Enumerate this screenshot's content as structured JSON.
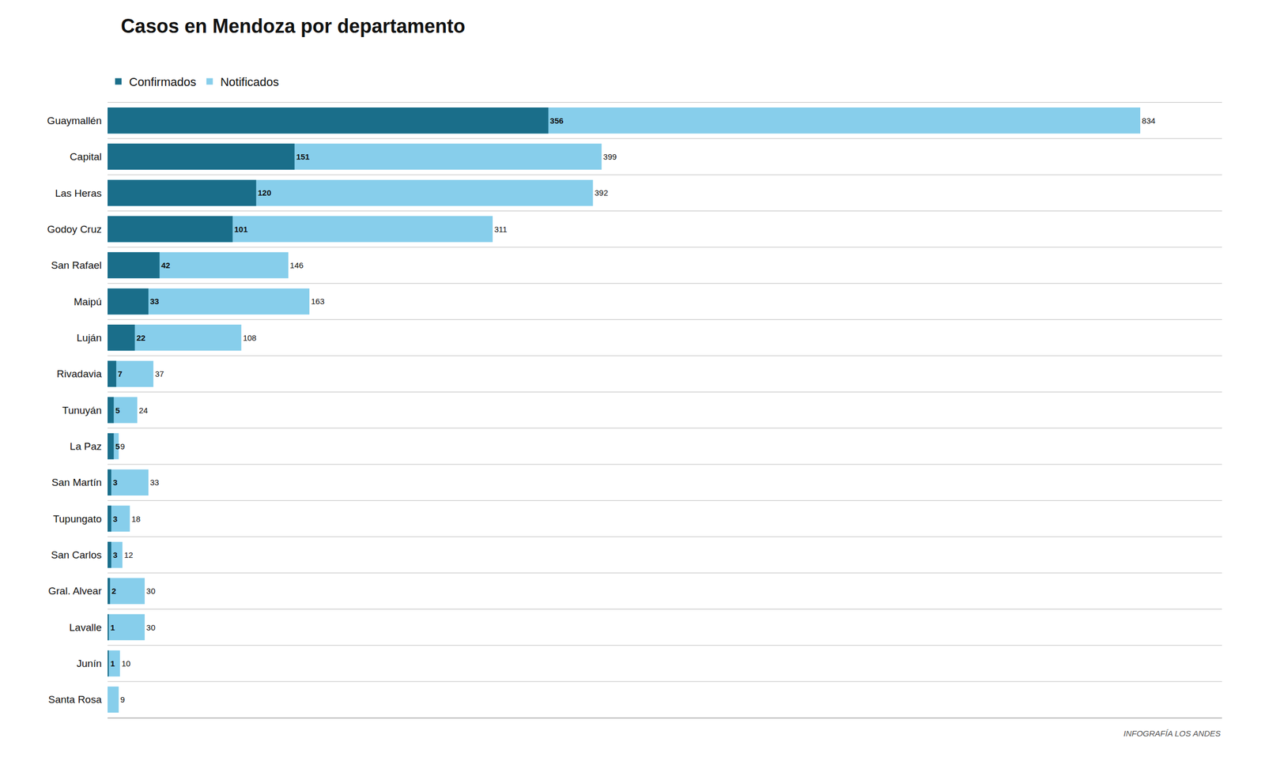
{
  "chart_data": {
    "type": "bar",
    "orientation": "horizontal",
    "title": "Casos en Mendoza por departamento",
    "categories": [
      "Guaymallén",
      "Capital",
      "Las Heras",
      "Godoy Cruz",
      "San Rafael",
      "Maipú",
      "Luján",
      "Rivadavia",
      "Tunuyán",
      "La Paz",
      "San Martín",
      "Tupungato",
      "San Carlos",
      "Gral. Alvear",
      "Lavalle",
      "Junín",
      "Santa Rosa"
    ],
    "series": [
      {
        "name": "Confirmados",
        "color": "#1a6e8a",
        "values": [
          356,
          151,
          120,
          101,
          42,
          33,
          22,
          7,
          5,
          5,
          3,
          3,
          3,
          2,
          1,
          1,
          0
        ]
      },
      {
        "name": "Notificados",
        "color": "#87ceeb",
        "values": [
          834,
          399,
          392,
          311,
          146,
          163,
          108,
          37,
          24,
          9,
          33,
          18,
          12,
          30,
          30,
          10,
          9
        ]
      }
    ],
    "xlim": [
      0,
      900
    ],
    "tick_labels": "y",
    "data_labels": true,
    "grid": true,
    "legend": "top left",
    "annotations": [
      "INFOGRAFÍA LOS ANDES"
    ]
  }
}
